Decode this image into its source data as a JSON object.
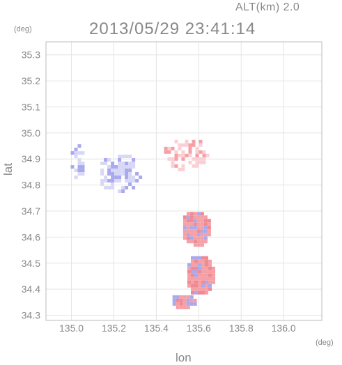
{
  "header": {
    "altitude_label": "ALT(km)  2.0",
    "timestamp": "2013/05/29 23:41:14"
  },
  "axes": {
    "x_label": "lon",
    "y_label": "lat",
    "x_unit": "(deg)",
    "y_unit": "(deg)",
    "x_ticks": [
      "135.0",
      "135.2",
      "135.4",
      "135.6",
      "135.8",
      "136.0"
    ],
    "y_ticks": [
      "35.3",
      "35.2",
      "35.1",
      "35.0",
      "34.9",
      "34.8",
      "34.7",
      "34.6",
      "34.5",
      "34.4",
      "34.3"
    ]
  },
  "chart_data": {
    "type": "heatmap",
    "title": "2013/05/29 23:41:14",
    "xlabel": "lon",
    "ylabel": "lat",
    "xlim": [
      134.88,
      136.18
    ],
    "ylim": [
      34.28,
      35.35
    ],
    "xticks": [
      135.0,
      135.2,
      135.4,
      135.6,
      135.8,
      136.0
    ],
    "yticks": [
      34.3,
      34.4,
      34.5,
      34.6,
      34.7,
      34.8,
      34.9,
      35.0,
      35.1,
      35.2,
      35.3
    ],
    "grid": true,
    "colors": {
      "positive": "#f5a0a6",
      "positive_light": "#fbd0d4",
      "negative": "#a9a9ee",
      "negative_light": "#d8d8f6",
      "axis_text": "#888888",
      "grid": "#e4e4e4"
    },
    "regions": [
      {
        "name": "west-cluster",
        "lon": 135.02,
        "lat": 34.9,
        "rx": 0.04,
        "ry": 0.07,
        "sign": "negative",
        "intensity": 0.35
      },
      {
        "name": "central-west-cluster",
        "lon": 135.22,
        "lat": 34.85,
        "rx": 0.1,
        "ry": 0.08,
        "sign": "negative",
        "intensity": 0.4
      },
      {
        "name": "north-cluster",
        "lon": 135.53,
        "lat": 34.93,
        "rx": 0.11,
        "ry": 0.07,
        "sign": "positive",
        "intensity": 0.35
      },
      {
        "name": "southern-band-upper",
        "lon": 135.58,
        "lat": 34.64,
        "rx": 0.07,
        "ry": 0.07,
        "sign": "mixed",
        "intensity": 0.9
      },
      {
        "name": "southern-band-lower",
        "lon": 135.6,
        "lat": 34.46,
        "rx": 0.07,
        "ry": 0.08,
        "sign": "mixed",
        "intensity": 0.9
      },
      {
        "name": "southern-tail",
        "lon": 135.52,
        "lat": 34.36,
        "rx": 0.06,
        "ry": 0.03,
        "sign": "mixed",
        "intensity": 0.8
      }
    ]
  }
}
